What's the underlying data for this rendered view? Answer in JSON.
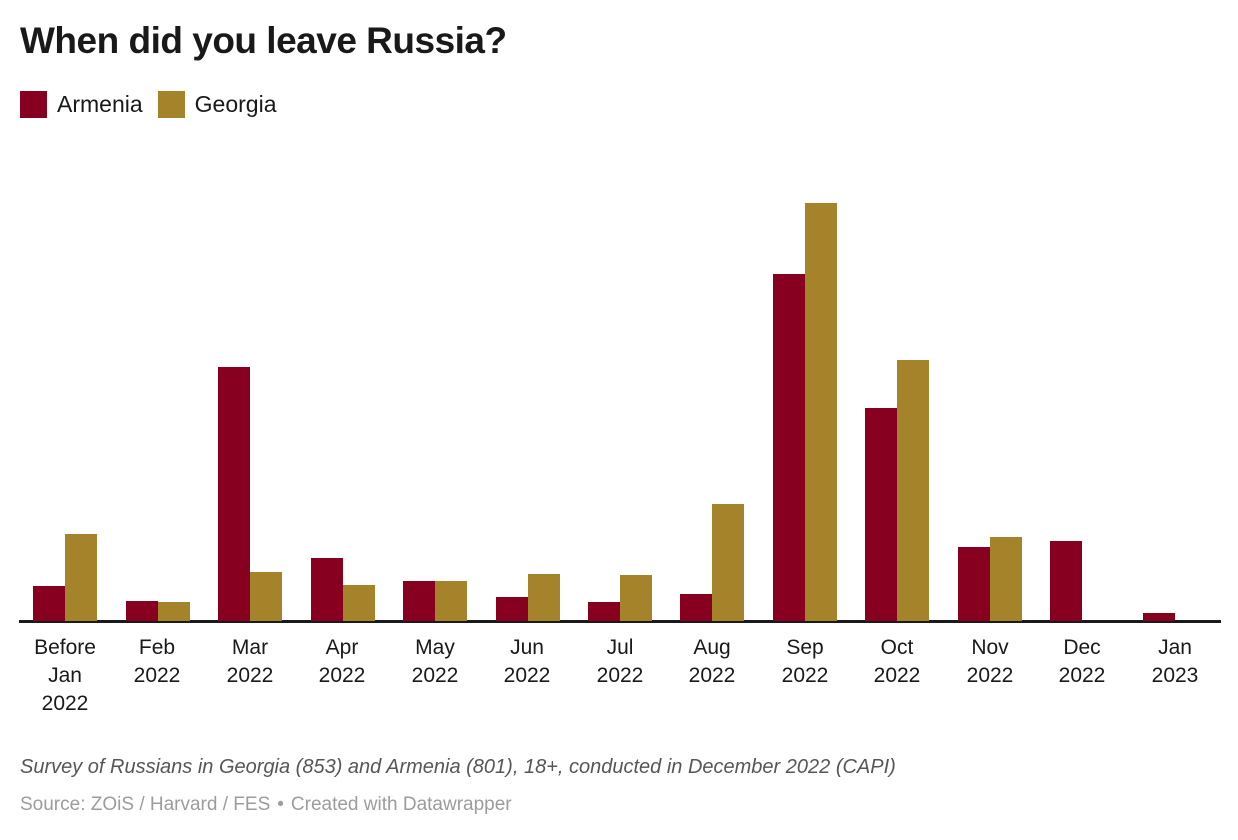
{
  "chart": {
    "title": "When did you leave Russia?",
    "notes": "Survey of Russians in Georgia (853) and Armenia (801), 18+, conducted in December 2022 (CAPI)",
    "source_text": "Source: ZOiS / Harvard / FES",
    "separator": "•",
    "attribution": "Created with Datawrapper"
  },
  "chart_data": {
    "type": "bar",
    "title": "When did you leave Russia?",
    "categories": [
      "Before\nJan\n2022",
      "Feb\n2022",
      "Mar\n2022",
      "Apr\n2022",
      "May\n2022",
      "Jun\n2022",
      "Jul\n2022",
      "Aug\n2022",
      "Sep\n2022",
      "Oct\n2022",
      "Nov\n2022",
      "Dec\n2022",
      "Jan\n2023"
    ],
    "series": [
      {
        "name": "Armenia",
        "color": "#87001f",
        "values": [
          2.9,
          1.7,
          21.1,
          5.2,
          3.3,
          2.0,
          1.6,
          2.2,
          28.8,
          17.7,
          6.1,
          6.6,
          0.7
        ]
      },
      {
        "name": "Georgia",
        "color": "#a5832b",
        "values": [
          7.2,
          1.6,
          4.1,
          3.0,
          3.3,
          3.9,
          3.8,
          9.7,
          34.7,
          21.7,
          7.0,
          0,
          0
        ]
      }
    ],
    "xlabel": "",
    "ylabel": "",
    "ylim": [
      0,
      35
    ],
    "grid": false,
    "y_axis_visible": false,
    "legend_position": "top-left"
  }
}
